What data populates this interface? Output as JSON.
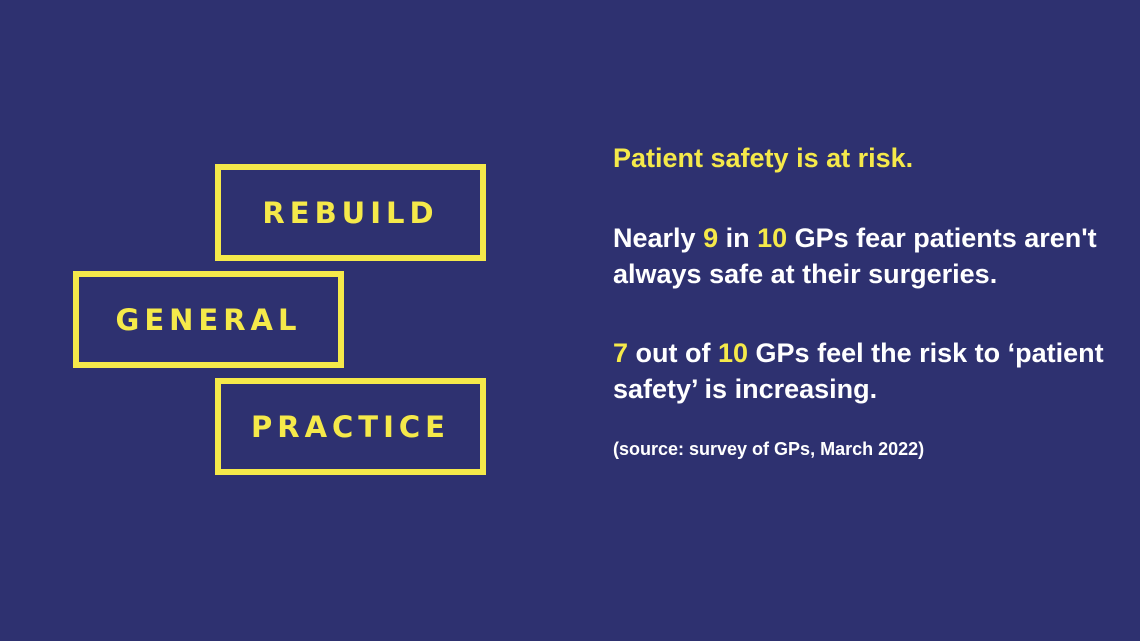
{
  "logo": {
    "words": [
      "REBUILD",
      "GENERAL",
      "PRACTICE"
    ],
    "color": "#f5e94a"
  },
  "colors": {
    "background": "#2e3170",
    "accent": "#f5e94a",
    "text": "#ffffff"
  },
  "content": {
    "headline": "Patient safety is at risk.",
    "stat1": {
      "prefix": "Nearly ",
      "num1": "9",
      "mid": " in ",
      "num2": "10",
      "suffix_hl": " GPs",
      "rest": " fear patients aren't always safe at their surgeries."
    },
    "stat2": {
      "num1": "7",
      "mid": " out of ",
      "num2": "10",
      "suffix_hl": " GPs",
      "rest": " feel the risk to ‘patient safety’ is increasing."
    },
    "source": "(source: survey of GPs, March 2022)"
  }
}
